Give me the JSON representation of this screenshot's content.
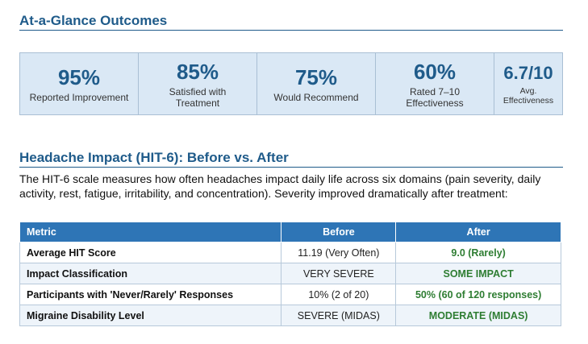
{
  "outcomes": {
    "title": "At-a-Glance Outcomes",
    "stats": [
      {
        "value": "95%",
        "label": "Reported Improvement"
      },
      {
        "value": "85%",
        "label": "Satisfied with Treatment"
      },
      {
        "value": "75%",
        "label": "Would Recommend"
      },
      {
        "value": "60%",
        "label": "Rated 7–10 Effectiveness"
      },
      {
        "value": "6.7/10",
        "label": "Avg. Effectiveness"
      }
    ]
  },
  "impact": {
    "title": "Headache Impact (HIT-6): Before vs. After",
    "description": "The HIT-6 scale measures how often headaches impact daily life across six domains (pain severity, daily activity, rest, fatigue, irritability, and concentration). Severity improved dramatically after treatment:",
    "table": {
      "headers": [
        "Metric",
        "Before",
        "After"
      ],
      "rows": [
        {
          "metric": "Average HIT Score",
          "before": "11.19 (Very Often)",
          "after": "9.0 (Rarely)"
        },
        {
          "metric": "Impact Classification",
          "before": "VERY SEVERE",
          "after": "SOME IMPACT"
        },
        {
          "metric": "Participants with 'Never/Rarely' Responses",
          "before": "10% (2 of 20)",
          "after": "50% (60 of 120 responses)"
        },
        {
          "metric": "Migraine Disability Level",
          "before": "SEVERE (MIDAS)",
          "after": "MODERATE (MIDAS)"
        }
      ]
    }
  },
  "colors": {
    "heading": "#1f5b8a",
    "stat_background": "#dae8f5",
    "table_header": "#2e75b6",
    "after_value": "#2e7d32"
  }
}
